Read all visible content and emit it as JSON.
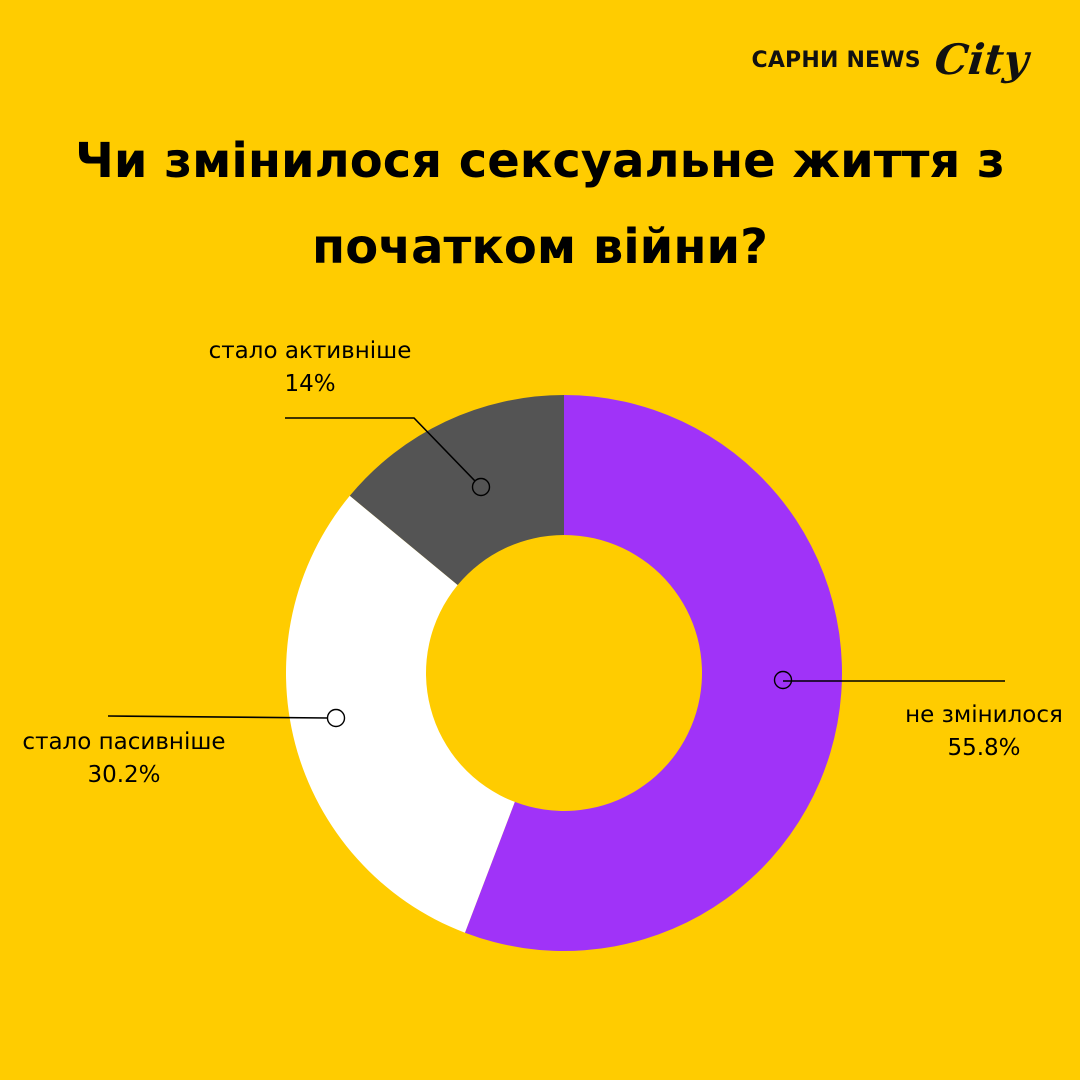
{
  "brand": {
    "name": "САРНИ NEWS",
    "logo_text": "City"
  },
  "colors": {
    "background": "#FFCC00",
    "text": "#000000"
  },
  "chart_data": {
    "type": "pie",
    "variant": "donut",
    "title": "Чи змінилося сексуальне життя з початком війни?",
    "slices": [
      {
        "label": "не змінилося",
        "value": 55.8,
        "value_label": "55.8%",
        "color": "#A033F8"
      },
      {
        "label": "стало пасивніше",
        "value": 30.2,
        "value_label": "30.2%",
        "color": "#FFFFFF"
      },
      {
        "label": "стало активніше",
        "value": 14,
        "value_label": "14%",
        "color": "#545454"
      }
    ],
    "start": "12 o'clock",
    "direction": "clockwise",
    "legend": "none (callout labels)"
  }
}
